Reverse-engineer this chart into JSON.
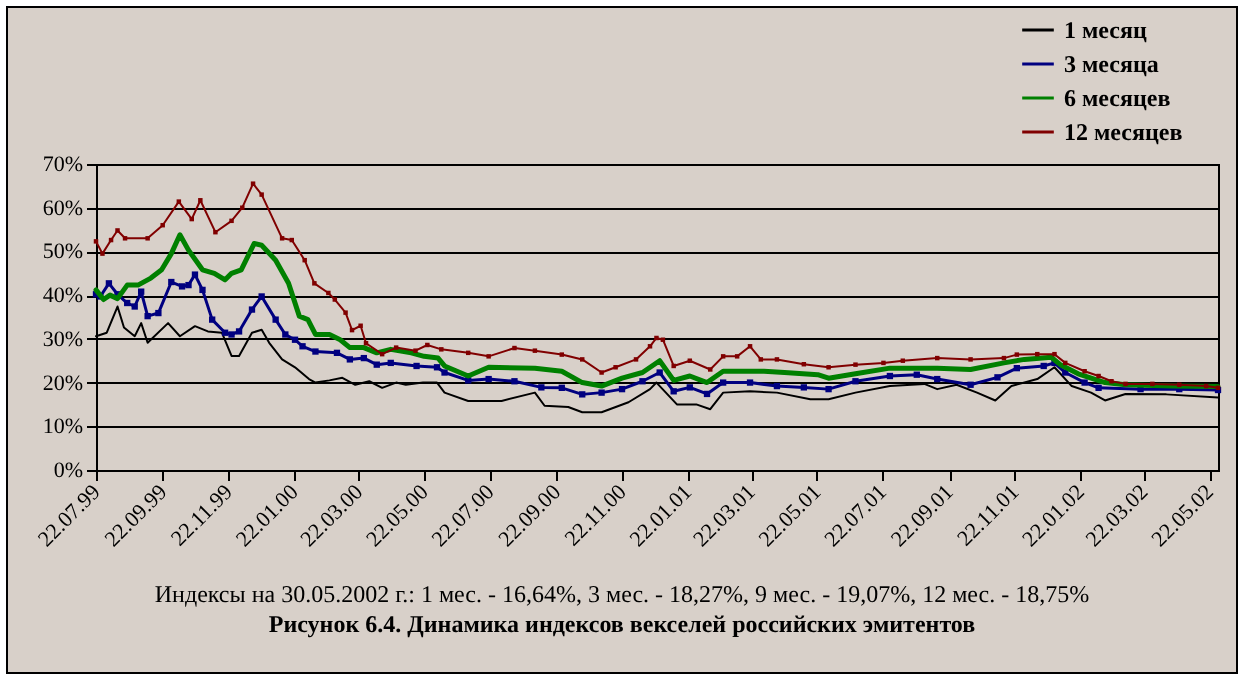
{
  "chart_data": {
    "type": "line",
    "title": "Рисунок 6.4. Динамика индексов векселей российских эмитентов",
    "annotations": [
      "Индексы на 30.05.2002 г.: 1 мес. - 16,64%, 3 мес. - 18,27%, 9 мес. - 19,07%, 12 мес. - 18,75%"
    ],
    "xlim": [
      "1999-07-22",
      "2002-05-30"
    ],
    "xticks": [
      {
        "value": "1999-07-22",
        "label": "22.07.99"
      },
      {
        "value": "1999-09-22",
        "label": "22.09.99"
      },
      {
        "value": "1999-11-22",
        "label": "22.11.99"
      },
      {
        "value": "2000-01-22",
        "label": "22.01.00"
      },
      {
        "value": "2000-03-22",
        "label": "22.03.00"
      },
      {
        "value": "2000-05-22",
        "label": "22.05.00"
      },
      {
        "value": "2000-07-22",
        "label": "22.07.00"
      },
      {
        "value": "2000-09-22",
        "label": "22.09.00"
      },
      {
        "value": "2000-11-22",
        "label": "22.11.00"
      },
      {
        "value": "2001-01-22",
        "label": "22.01.01"
      },
      {
        "value": "2001-03-22",
        "label": "22.03.01"
      },
      {
        "value": "2001-05-22",
        "label": "22.05.01"
      },
      {
        "value": "2001-07-22",
        "label": "22.07.01"
      },
      {
        "value": "2001-09-22",
        "label": "22.09.01"
      },
      {
        "value": "2001-11-22",
        "label": "22.11.01"
      },
      {
        "value": "2002-01-22",
        "label": "22.01.02"
      },
      {
        "value": "2002-03-22",
        "label": "22.03.02"
      },
      {
        "value": "2002-05-22",
        "label": "22.05.02"
      }
    ],
    "ylim": [
      0,
      70
    ],
    "yticks": [
      {
        "value": 0,
        "label": "0%"
      },
      {
        "value": 10,
        "label": "10%"
      },
      {
        "value": 20,
        "label": "20%"
      },
      {
        "value": 30,
        "label": "30%"
      },
      {
        "value": 40,
        "label": "40%"
      },
      {
        "value": 50,
        "label": "50%"
      },
      {
        "value": 60,
        "label": "60%"
      },
      {
        "value": 70,
        "label": "70%"
      }
    ],
    "grid": "y",
    "legend": "top right",
    "series": [
      {
        "name": "1 месяц",
        "color": "#000000",
        "marker": "none",
        "x": [
          "1999-07-22",
          "1999-08-01",
          "1999-08-11",
          "1999-08-17",
          "1999-08-27",
          "1999-09-02",
          "1999-09-08",
          "1999-09-27",
          "1999-10-08",
          "1999-10-22",
          "1999-11-03",
          "1999-11-16",
          "1999-11-25",
          "1999-12-02",
          "1999-12-14",
          "1999-12-23",
          "1999-12-30",
          "2000-01-11",
          "2000-01-23",
          "2000-02-05",
          "2000-02-11",
          "2000-02-24",
          "2000-03-07",
          "2000-03-19",
          "2000-04-01",
          "2000-04-13",
          "2000-04-26",
          "2000-05-05",
          "2000-05-21",
          "2000-06-03",
          "2000-06-10",
          "2000-07-02",
          "2000-08-02",
          "2000-09-02",
          "2000-09-11",
          "2000-10-03",
          "2000-10-16",
          "2000-11-03",
          "2000-11-28",
          "2000-12-18",
          "2000-12-24",
          "2001-01-12",
          "2001-01-30",
          "2001-02-12",
          "2001-02-24",
          "2001-03-21",
          "2001-04-15",
          "2001-05-16",
          "2001-06-02",
          "2001-06-27",
          "2001-07-29",
          "2001-08-30",
          "2001-09-11",
          "2001-09-29",
          "2001-10-18",
          "2001-11-04",
          "2001-11-19",
          "2001-12-13",
          "2001-12-29",
          "2002-01-14",
          "2002-02-01",
          "2002-02-14",
          "2002-03-05",
          "2002-04-12",
          "2002-05-30"
        ],
        "values": [
          30.6,
          31.4,
          37.4,
          32.6,
          30.6,
          33.6,
          29.1,
          33.6,
          30.6,
          32.9,
          31.7,
          31.4,
          26.1,
          26.1,
          31.4,
          32.1,
          29.1,
          25.3,
          23.5,
          20.8,
          20.0,
          20.5,
          21.1,
          19.5,
          20.3,
          18.8,
          20.0,
          19.5,
          20.0,
          20.0,
          17.7,
          15.8,
          15.8,
          17.7,
          14.7,
          14.4,
          13.2,
          13.2,
          15.5,
          18.5,
          20.0,
          15.0,
          15.0,
          13.9,
          17.7,
          18.0,
          17.7,
          16.2,
          16.2,
          17.7,
          19.2,
          19.7,
          18.5,
          19.5,
          17.7,
          15.9,
          19.2,
          20.8,
          23.5,
          19.2,
          17.7,
          15.9,
          17.4,
          17.3,
          16.6
        ]
      },
      {
        "name": "3 месяца",
        "color": "#000080",
        "marker": "square",
        "x": [
          "1999-07-22",
          "1999-07-26",
          "1999-08-03",
          "1999-08-11",
          "1999-08-20",
          "1999-08-27",
          "1999-09-02",
          "1999-09-08",
          "1999-09-18",
          "1999-09-30",
          "1999-10-10",
          "1999-10-16",
          "1999-10-22",
          "1999-10-29",
          "1999-11-07",
          "1999-11-19",
          "1999-11-25",
          "1999-12-02",
          "1999-12-14",
          "1999-12-23",
          "2000-01-05",
          "2000-01-14",
          "2000-01-23",
          "2000-01-30",
          "2000-02-11",
          "2000-03-02",
          "2000-03-14",
          "2000-03-27",
          "2000-04-08",
          "2000-04-21",
          "2000-05-15",
          "2000-06-03",
          "2000-06-10",
          "2000-07-02",
          "2000-07-21",
          "2000-08-14",
          "2000-09-08",
          "2000-09-27",
          "2000-10-16",
          "2000-11-03",
          "2000-11-22",
          "2000-12-11",
          "2000-12-27",
          "2001-01-09",
          "2001-01-24",
          "2001-02-09",
          "2001-02-24",
          "2001-03-21",
          "2001-04-15",
          "2001-05-10",
          "2001-06-02",
          "2001-06-27",
          "2001-07-29",
          "2001-08-23",
          "2001-09-11",
          "2001-10-12",
          "2001-11-06",
          "2001-11-24",
          "2001-12-19",
          "2001-12-29",
          "2002-01-08",
          "2002-01-26",
          "2002-02-08",
          "2002-03-19",
          "2002-04-24",
          "2002-05-30"
        ],
        "values": [
          40.2,
          39.7,
          42.7,
          40.2,
          38.2,
          37.4,
          40.8,
          35.2,
          35.9,
          43.0,
          42.0,
          42.3,
          44.7,
          41.2,
          34.4,
          31.4,
          31.0,
          31.7,
          36.7,
          39.7,
          34.4,
          31.0,
          29.8,
          28.3,
          27.1,
          26.8,
          25.3,
          25.6,
          24.1,
          24.5,
          23.8,
          23.5,
          22.3,
          20.5,
          20.8,
          20.3,
          18.9,
          18.8,
          17.3,
          17.7,
          18.5,
          20.3,
          22.3,
          18.0,
          18.9,
          17.4,
          20.0,
          20.0,
          19.2,
          18.9,
          18.5,
          20.3,
          21.5,
          21.8,
          20.8,
          19.5,
          21.2,
          23.3,
          23.8,
          24.5,
          22.3,
          20.0,
          18.8,
          18.5,
          18.5,
          18.3
        ]
      },
      {
        "name": "6 месяцев",
        "color": "#008000",
        "marker": "none",
        "x": [
          "1999-07-22",
          "1999-07-29",
          "1999-08-04",
          "1999-08-11",
          "1999-08-20",
          "1999-08-30",
          "1999-09-11",
          "1999-09-21",
          "1999-09-30",
          "1999-10-08",
          "1999-10-16",
          "1999-10-29",
          "1999-11-09",
          "1999-11-19",
          "1999-11-25",
          "1999-12-04",
          "1999-12-16",
          "1999-12-23",
          "2000-01-05",
          "2000-01-17",
          "2000-01-27",
          "2000-02-04",
          "2000-02-11",
          "2000-02-24",
          "2000-03-05",
          "2000-03-14",
          "2000-03-27",
          "2000-04-08",
          "2000-04-21",
          "2000-05-10",
          "2000-05-22",
          "2000-06-04",
          "2000-06-10",
          "2000-07-02",
          "2000-07-21",
          "2000-09-02",
          "2000-09-27",
          "2000-10-16",
          "2000-11-03",
          "2000-11-22",
          "2000-12-11",
          "2000-12-27",
          "2001-01-09",
          "2001-01-24",
          "2001-02-09",
          "2001-02-24",
          "2001-04-03",
          "2001-04-22",
          "2001-05-23",
          "2001-06-02",
          "2001-06-27",
          "2001-07-29",
          "2001-09-11",
          "2001-10-12",
          "2001-11-12",
          "2001-12-01",
          "2001-12-26",
          "2002-01-04",
          "2002-01-20",
          "2002-02-14",
          "2002-03-05",
          "2002-04-18",
          "2002-05-30"
        ],
        "values": [
          41.2,
          39.0,
          40.0,
          39.2,
          42.3,
          42.3,
          43.9,
          45.8,
          49.5,
          53.8,
          50.3,
          45.8,
          45.0,
          43.5,
          45.0,
          45.8,
          51.8,
          51.4,
          48.0,
          42.7,
          35.2,
          34.4,
          31.0,
          31.0,
          29.8,
          28.0,
          28.0,
          26.8,
          27.6,
          26.8,
          26.0,
          25.6,
          23.8,
          21.5,
          23.5,
          23.3,
          22.6,
          20.0,
          19.2,
          21.0,
          22.3,
          25.0,
          20.5,
          21.5,
          20.0,
          22.6,
          22.6,
          22.3,
          21.8,
          21.0,
          22.0,
          23.3,
          23.3,
          23.0,
          24.5,
          25.3,
          25.8,
          24.0,
          22.0,
          20.0,
          19.5,
          19.2,
          19.1
        ]
      },
      {
        "name": "12 месяцев",
        "color": "#800000",
        "marker": "square",
        "x": [
          "1999-07-22",
          "1999-07-28",
          "1999-08-05",
          "1999-08-11",
          "1999-08-18",
          "1999-09-08",
          "1999-09-22",
          "1999-10-07",
          "1999-10-19",
          "1999-10-27",
          "1999-11-10",
          "1999-11-25",
          "1999-12-05",
          "1999-12-15",
          "1999-12-23",
          "2000-01-11",
          "2000-01-20",
          "2000-02-01",
          "2000-02-10",
          "2000-02-23",
          "2000-02-29",
          "2000-03-10",
          "2000-03-16",
          "2000-03-24",
          "2000-03-29",
          "2000-04-13",
          "2000-04-26",
          "2000-05-14",
          "2000-05-25",
          "2000-06-07",
          "2000-07-02",
          "2000-07-21",
          "2000-08-14",
          "2000-09-02",
          "2000-09-27",
          "2000-10-16",
          "2000-11-03",
          "2000-11-16",
          "2000-12-05",
          "2000-12-18",
          "2000-12-24",
          "2000-12-30",
          "2001-01-09",
          "2001-01-24",
          "2001-02-12",
          "2001-02-24",
          "2001-03-09",
          "2001-03-21",
          "2001-03-31",
          "2001-04-15",
          "2001-05-10",
          "2001-06-02",
          "2001-06-27",
          "2001-07-23",
          "2001-08-10",
          "2001-09-11",
          "2001-10-12",
          "2001-11-12",
          "2001-11-24",
          "2001-12-13",
          "2001-12-29",
          "2002-01-08",
          "2002-01-26",
          "2002-02-08",
          "2002-02-20",
          "2002-03-05",
          "2002-03-30",
          "2002-04-24",
          "2002-05-19",
          "2002-05-30"
        ],
        "values": [
          52.3,
          49.5,
          52.6,
          54.8,
          53.0,
          53.0,
          56.0,
          61.4,
          57.4,
          61.7,
          54.4,
          57.0,
          60.0,
          65.5,
          63.0,
          53.0,
          52.6,
          48.0,
          42.7,
          40.5,
          39.0,
          36.0,
          32.0,
          33.0,
          29.0,
          26.5,
          28.0,
          27.3,
          28.6,
          27.6,
          26.8,
          26.0,
          27.9,
          27.3,
          26.4,
          25.3,
          22.3,
          23.5,
          25.3,
          28.3,
          30.2,
          29.8,
          23.8,
          25.0,
          23.0,
          26.0,
          26.0,
          28.3,
          25.3,
          25.3,
          24.2,
          23.5,
          24.1,
          24.5,
          25.0,
          25.6,
          25.3,
          25.6,
          26.4,
          26.5,
          26.5,
          24.5,
          22.6,
          21.5,
          20.3,
          19.7,
          19.7,
          19.5,
          19.2,
          18.8
        ]
      }
    ]
  }
}
